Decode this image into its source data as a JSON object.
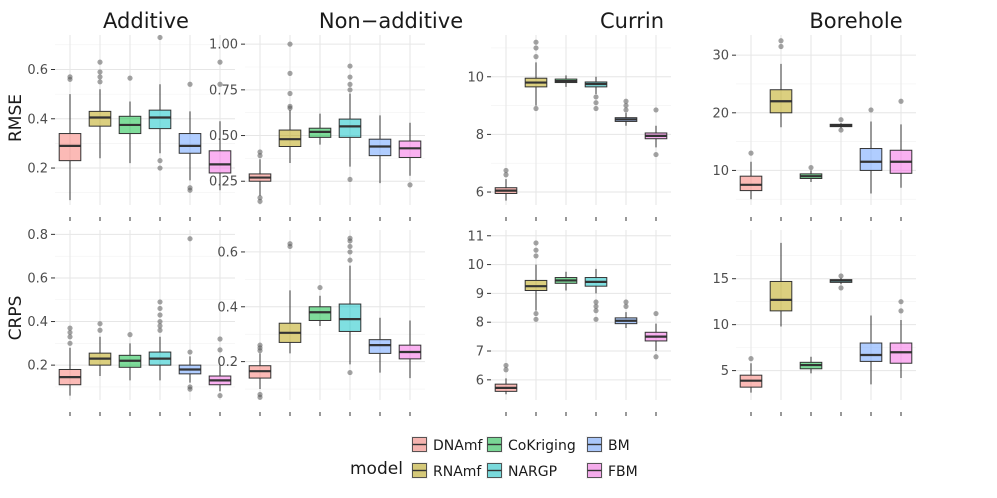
{
  "figure": {
    "column_titles": [
      "Additive",
      "Non−additive",
      "Currin",
      "Borehole"
    ],
    "row_labels": [
      "RMSE",
      "CRPS"
    ]
  },
  "legend": {
    "title": "model",
    "entries": [
      {
        "name": "DNAmf",
        "color": "#F8766D"
      },
      {
        "name": "RNAmf",
        "color": "#B79F00"
      },
      {
        "name": "CoKriging",
        "color": "#00BA38"
      },
      {
        "name": "NARGP",
        "color": "#00BFC4"
      },
      {
        "name": "BM",
        "color": "#619CFF"
      },
      {
        "name": "FBM",
        "color": "#F564E3"
      }
    ]
  },
  "chart_data": [
    {
      "type": "boxplot",
      "title": "Additive",
      "ylabel": "RMSE",
      "ylim": [
        0.05,
        0.74
      ],
      "yticks": [
        0.2,
        0.4,
        0.6
      ],
      "ytick_labels": [
        "0.2",
        "0.4",
        "0.6"
      ],
      "minor_ticks": [
        0.1,
        0.3,
        0.5,
        0.7
      ],
      "series": [
        {
          "name": "DNAmf",
          "min": 0.07,
          "q1": 0.23,
          "median": 0.29,
          "q3": 0.34,
          "max": 0.5,
          "outliers": [
            0.56,
            0.57
          ]
        },
        {
          "name": "RNAmf",
          "min": 0.24,
          "q1": 0.37,
          "median": 0.405,
          "q3": 0.43,
          "max": 0.52,
          "outliers": [
            0.55,
            0.57,
            0.59,
            0.63
          ]
        },
        {
          "name": "CoKriging",
          "min": 0.22,
          "q1": 0.34,
          "median": 0.375,
          "q3": 0.41,
          "max": 0.47,
          "outliers": [
            0.565
          ]
        },
        {
          "name": "NARGP",
          "min": 0.26,
          "q1": 0.36,
          "median": 0.405,
          "q3": 0.435,
          "max": 0.54,
          "outliers": [
            0.2,
            0.23,
            0.73
          ]
        },
        {
          "name": "BM",
          "min": 0.15,
          "q1": 0.26,
          "median": 0.29,
          "q3": 0.34,
          "max": 0.43,
          "outliers": [
            0.11,
            0.12,
            0.54
          ]
        },
        {
          "name": "FBM",
          "min": 0.11,
          "q1": 0.18,
          "median": 0.215,
          "q3": 0.27,
          "max": 0.39,
          "outliers": [
            0.54,
            0.63
          ]
        }
      ]
    },
    {
      "type": "boxplot",
      "title": "Non−additive",
      "ylabel": "RMSE",
      "ylim": [
        0.12,
        1.05
      ],
      "yticks": [
        0.25,
        0.5,
        0.75,
        1.0
      ],
      "ytick_labels": [
        "0.25",
        "0.50",
        "0.75",
        "1.00"
      ],
      "minor_ticks": [
        0.375,
        0.625,
        0.875
      ],
      "series": [
        {
          "name": "DNAmf",
          "min": 0.17,
          "q1": 0.25,
          "median": 0.27,
          "q3": 0.29,
          "max": 0.37,
          "outliers": [
            0.14,
            0.16,
            0.39,
            0.41
          ]
        },
        {
          "name": "RNAmf",
          "min": 0.35,
          "q1": 0.44,
          "median": 0.48,
          "q3": 0.53,
          "max": 0.64,
          "outliers": [
            0.65,
            0.66,
            0.73,
            0.84,
            1.0
          ]
        },
        {
          "name": "CoKriging",
          "min": 0.45,
          "q1": 0.49,
          "median": 0.52,
          "q3": 0.54,
          "max": 0.62,
          "outliers": []
        },
        {
          "name": "NARGP",
          "min": 0.33,
          "q1": 0.49,
          "median": 0.55,
          "q3": 0.59,
          "max": 0.73,
          "outliers": [
            0.26,
            0.75,
            0.78,
            0.82,
            0.88
          ]
        },
        {
          "name": "BM",
          "min": 0.24,
          "q1": 0.39,
          "median": 0.44,
          "q3": 0.48,
          "max": 0.61,
          "outliers": []
        },
        {
          "name": "FBM",
          "min": 0.28,
          "q1": 0.38,
          "median": 0.43,
          "q3": 0.47,
          "max": 0.57,
          "outliers": [
            0.23
          ]
        }
      ]
    },
    {
      "type": "boxplot",
      "title": "Currin",
      "ylabel": "RMSE",
      "ylim": [
        5.55,
        11.45
      ],
      "yticks": [
        6,
        8,
        10
      ],
      "ytick_labels": [
        "6",
        "8",
        "10"
      ],
      "minor_ticks": [
        7,
        9,
        11
      ],
      "series": [
        {
          "name": "DNAmf",
          "min": 5.7,
          "q1": 5.95,
          "median": 6.05,
          "q3": 6.15,
          "max": 6.45,
          "outliers": [
            6.6,
            6.75
          ]
        },
        {
          "name": "RNAmf",
          "min": 9.0,
          "q1": 9.65,
          "median": 9.8,
          "q3": 9.95,
          "max": 10.5,
          "outliers": [
            8.9,
            10.7,
            11.0,
            11.2
          ]
        },
        {
          "name": "CoKriging",
          "min": 9.65,
          "q1": 9.8,
          "median": 9.85,
          "q3": 9.92,
          "max": 10.05,
          "outliers": []
        },
        {
          "name": "NARGP",
          "min": 9.4,
          "q1": 9.65,
          "median": 9.75,
          "q3": 9.82,
          "max": 10.0,
          "outliers": [
            8.9,
            9.1,
            9.3
          ]
        },
        {
          "name": "BM",
          "min": 8.3,
          "q1": 8.45,
          "median": 8.52,
          "q3": 8.58,
          "max": 8.75,
          "outliers": [
            8.85,
            9.0,
            9.15
          ]
        },
        {
          "name": "FBM",
          "min": 7.55,
          "q1": 7.85,
          "median": 7.95,
          "q3": 8.05,
          "max": 8.3,
          "outliers": [
            7.3,
            8.85
          ]
        }
      ]
    },
    {
      "type": "boxplot",
      "title": "Borehole",
      "ylabel": "RMSE",
      "ylim": [
        4.0,
        33.5
      ],
      "yticks": [
        10,
        20,
        30
      ],
      "ytick_labels": [
        "10",
        "20",
        "30"
      ],
      "minor_ticks": [
        5,
        15,
        25
      ],
      "series": [
        {
          "name": "DNAmf",
          "min": 5.0,
          "q1": 6.5,
          "median": 7.5,
          "q3": 9.0,
          "max": 11.5,
          "outliers": [
            13.0
          ]
        },
        {
          "name": "RNAmf",
          "min": 17.5,
          "q1": 20.0,
          "median": 22.0,
          "q3": 24.0,
          "max": 28.5,
          "outliers": [
            31.5,
            32.5
          ]
        },
        {
          "name": "CoKriging",
          "min": 8.0,
          "q1": 8.6,
          "median": 9.0,
          "q3": 9.4,
          "max": 10.0,
          "outliers": [
            10.5
          ]
        },
        {
          "name": "NARGP",
          "min": 17.3,
          "q1": 17.6,
          "median": 17.8,
          "q3": 18.0,
          "max": 18.2,
          "outliers": [
            17.0,
            18.8
          ]
        },
        {
          "name": "BM",
          "min": 6.0,
          "q1": 10.0,
          "median": 11.5,
          "q3": 13.8,
          "max": 18.5,
          "outliers": [
            20.5
          ]
        },
        {
          "name": "FBM",
          "min": 7.0,
          "q1": 9.5,
          "median": 11.5,
          "q3": 13.5,
          "max": 18.0,
          "outliers": [
            22.0
          ]
        }
      ]
    },
    {
      "type": "boxplot",
      "title": "Additive",
      "ylabel": "CRPS",
      "ylim": [
        0.04,
        0.82
      ],
      "yticks": [
        0.2,
        0.4,
        0.6,
        0.8
      ],
      "ytick_labels": [
        "0.2",
        "0.4",
        "0.6",
        "0.8"
      ],
      "minor_ticks": [
        0.1,
        0.3,
        0.5,
        0.7
      ],
      "series": [
        {
          "name": "DNAmf",
          "min": 0.06,
          "q1": 0.11,
          "median": 0.145,
          "q3": 0.18,
          "max": 0.28,
          "outliers": [
            0.3,
            0.33,
            0.35,
            0.37
          ]
        },
        {
          "name": "RNAmf",
          "min": 0.15,
          "q1": 0.2,
          "median": 0.23,
          "q3": 0.255,
          "max": 0.33,
          "outliers": [
            0.36,
            0.39
          ]
        },
        {
          "name": "CoKriging",
          "min": 0.13,
          "q1": 0.19,
          "median": 0.22,
          "q3": 0.245,
          "max": 0.3,
          "outliers": [
            0.34
          ]
        },
        {
          "name": "NARGP",
          "min": 0.13,
          "q1": 0.2,
          "median": 0.23,
          "q3": 0.26,
          "max": 0.33,
          "outliers": [
            0.36,
            0.38,
            0.4,
            0.43,
            0.46,
            0.49
          ]
        },
        {
          "name": "BM",
          "min": 0.12,
          "q1": 0.16,
          "median": 0.18,
          "q3": 0.2,
          "max": 0.24,
          "outliers": [
            0.09,
            0.1,
            0.26,
            0.78
          ]
        },
        {
          "name": "FBM",
          "min": 0.08,
          "q1": 0.11,
          "median": 0.13,
          "q3": 0.15,
          "max": 0.2,
          "outliers": [
            0.06,
            0.27,
            0.32
          ]
        }
      ]
    },
    {
      "type": "boxplot",
      "title": "Non−additive",
      "ylabel": "CRPS",
      "ylim": [
        0.06,
        0.68
      ],
      "yticks": [
        0.2,
        0.4,
        0.6
      ],
      "ytick_labels": [
        "0.2",
        "0.4",
        "0.6"
      ],
      "minor_ticks": [
        0.1,
        0.3,
        0.5
      ],
      "series": [
        {
          "name": "DNAmf",
          "min": 0.1,
          "q1": 0.14,
          "median": 0.165,
          "q3": 0.185,
          "max": 0.23,
          "outliers": [
            0.07,
            0.08,
            0.24,
            0.25,
            0.26
          ]
        },
        {
          "name": "RNAmf",
          "min": 0.23,
          "q1": 0.27,
          "median": 0.305,
          "q3": 0.34,
          "max": 0.46,
          "outliers": [
            0.62,
            0.63
          ]
        },
        {
          "name": "CoKriging",
          "min": 0.33,
          "q1": 0.35,
          "median": 0.38,
          "q3": 0.4,
          "max": 0.44,
          "outliers": [
            0.47
          ]
        },
        {
          "name": "NARGP",
          "min": 0.19,
          "q1": 0.31,
          "median": 0.355,
          "q3": 0.41,
          "max": 0.55,
          "outliers": [
            0.16,
            0.57,
            0.6,
            0.62,
            0.64,
            0.65
          ]
        },
        {
          "name": "BM",
          "min": 0.16,
          "q1": 0.23,
          "median": 0.26,
          "q3": 0.28,
          "max": 0.36,
          "outliers": []
        },
        {
          "name": "FBM",
          "min": 0.14,
          "q1": 0.21,
          "median": 0.235,
          "q3": 0.26,
          "max": 0.35,
          "outliers": []
        }
      ]
    },
    {
      "type": "boxplot",
      "title": "Currin",
      "ylabel": "CRPS",
      "ylim": [
        5.3,
        11.2
      ],
      "yticks": [
        6,
        7,
        8,
        9,
        10,
        11
      ],
      "ytick_labels": [
        "6",
        "7",
        "8",
        "9",
        "10",
        "11"
      ],
      "minor_ticks": [],
      "series": [
        {
          "name": "DNAmf",
          "min": 5.5,
          "q1": 5.6,
          "median": 5.72,
          "q3": 5.85,
          "max": 6.05,
          "outliers": [
            6.35,
            6.5
          ]
        },
        {
          "name": "RNAmf",
          "min": 8.4,
          "q1": 9.1,
          "median": 9.25,
          "q3": 9.45,
          "max": 10.0,
          "outliers": [
            8.1,
            8.3,
            10.3,
            10.5,
            10.75
          ]
        },
        {
          "name": "CoKriging",
          "min": 9.1,
          "q1": 9.35,
          "median": 9.45,
          "q3": 9.55,
          "max": 9.75,
          "outliers": []
        },
        {
          "name": "NARGP",
          "min": 9.0,
          "q1": 9.25,
          "median": 9.4,
          "q3": 9.55,
          "max": 9.85,
          "outliers": [
            8.1,
            8.4,
            8.55,
            8.7
          ]
        },
        {
          "name": "BM",
          "min": 7.8,
          "q1": 7.95,
          "median": 8.05,
          "q3": 8.15,
          "max": 8.35,
          "outliers": [
            8.55,
            8.7
          ]
        },
        {
          "name": "FBM",
          "min": 7.0,
          "q1": 7.35,
          "median": 7.5,
          "q3": 7.65,
          "max": 7.95,
          "outliers": [
            6.8,
            8.3
          ]
        }
      ]
    },
    {
      "type": "boxplot",
      "title": "Borehole",
      "ylabel": "CRPS",
      "ylim": [
        1.8,
        20.3
      ],
      "yticks": [
        5,
        10,
        15
      ],
      "ytick_labels": [
        "5",
        "10",
        "15"
      ],
      "minor_ticks": [
        7.5,
        12.5,
        17.5
      ],
      "series": [
        {
          "name": "DNAmf",
          "min": 2.6,
          "q1": 3.2,
          "median": 3.9,
          "q3": 4.5,
          "max": 5.8,
          "outliers": [
            6.3
          ]
        },
        {
          "name": "RNAmf",
          "min": 9.8,
          "q1": 11.5,
          "median": 12.7,
          "q3": 14.7,
          "max": 18.9,
          "outliers": []
        },
        {
          "name": "CoKriging",
          "min": 4.7,
          "q1": 5.2,
          "median": 5.6,
          "q3": 5.9,
          "max": 6.5,
          "outliers": []
        },
        {
          "name": "NARGP",
          "min": 14.4,
          "q1": 14.6,
          "median": 14.8,
          "q3": 14.9,
          "max": 15.1,
          "outliers": [
            14.0,
            15.3
          ]
        },
        {
          "name": "BM",
          "min": 3.5,
          "q1": 6.0,
          "median": 6.7,
          "q3": 8.0,
          "max": 11.0,
          "outliers": []
        },
        {
          "name": "FBM",
          "min": 4.2,
          "q1": 5.8,
          "median": 7.0,
          "q3": 8.0,
          "max": 10.5,
          "outliers": [
            11.5,
            12.5
          ]
        }
      ]
    }
  ]
}
